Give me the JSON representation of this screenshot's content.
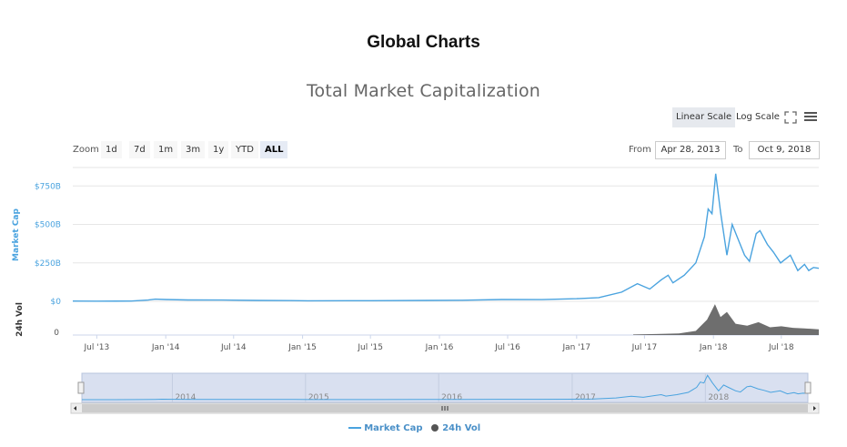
{
  "page": {
    "title": "Global Charts"
  },
  "controls": {
    "linear_scale": "Linear Scale",
    "log_scale": "Log Scale",
    "zoom_label": "Zoom",
    "zoom_buttons": [
      "1d",
      "7d",
      "1m",
      "3m",
      "1y",
      "YTD",
      "ALL"
    ],
    "active_zoom": "ALL",
    "from_label": "From",
    "from_value": "Apr 28, 2013",
    "to_label": "To",
    "to_value": "Oct 9, 2018"
  },
  "colors": {
    "market_cap": "#4aa3df",
    "volume": "#555555",
    "navigator_fill": "#d9e0f0"
  },
  "chart_data": {
    "type": "line",
    "title": "Total Market Capitalization",
    "yaxis_market_cap": {
      "label": "Market Cap",
      "ticks": [
        "$0",
        "$250B",
        "$500B",
        "$750B"
      ],
      "tick_values": [
        0,
        250,
        500,
        750
      ],
      "unit": "B USD"
    },
    "yaxis_volume": {
      "label": "24h Vol",
      "ticks": [
        "0"
      ]
    },
    "x_ticks": [
      "Jul '13",
      "Jan '14",
      "Jul '14",
      "Jan '15",
      "Jul '15",
      "Jan '16",
      "Jul '16",
      "Jan '17",
      "Jul '17",
      "Jan '18",
      "Jul '18"
    ],
    "navigator_ticks": [
      "2014",
      "2015",
      "2016",
      "2017",
      "2018"
    ],
    "series": [
      {
        "name": "Market Cap",
        "unit": "B USD",
        "points": [
          [
            "2013-04-28",
            1.5
          ],
          [
            "2013-07-01",
            1.2
          ],
          [
            "2013-10-01",
            2
          ],
          [
            "2013-11-15",
            8
          ],
          [
            "2013-12-04",
            14
          ],
          [
            "2014-01-01",
            12
          ],
          [
            "2014-03-01",
            9
          ],
          [
            "2014-06-01",
            8
          ],
          [
            "2014-09-01",
            6
          ],
          [
            "2014-12-01",
            5
          ],
          [
            "2015-01-15",
            3.5
          ],
          [
            "2015-07-01",
            4
          ],
          [
            "2015-12-01",
            6
          ],
          [
            "2016-03-01",
            7
          ],
          [
            "2016-06-15",
            12
          ],
          [
            "2016-10-01",
            11
          ],
          [
            "2017-01-01",
            17
          ],
          [
            "2017-03-01",
            24
          ],
          [
            "2017-05-01",
            60
          ],
          [
            "2017-06-12",
            115
          ],
          [
            "2017-07-15",
            80
          ],
          [
            "2017-08-15",
            140
          ],
          [
            "2017-09-02",
            170
          ],
          [
            "2017-09-15",
            120
          ],
          [
            "2017-10-15",
            170
          ],
          [
            "2017-11-15",
            250
          ],
          [
            "2017-12-08",
            420
          ],
          [
            "2017-12-18",
            600
          ],
          [
            "2017-12-28",
            570
          ],
          [
            "2018-01-07",
            830
          ],
          [
            "2018-01-20",
            580
          ],
          [
            "2018-02-06",
            300
          ],
          [
            "2018-02-20",
            500
          ],
          [
            "2018-03-05",
            420
          ],
          [
            "2018-03-25",
            300
          ],
          [
            "2018-04-07",
            260
          ],
          [
            "2018-04-25",
            440
          ],
          [
            "2018-05-05",
            460
          ],
          [
            "2018-05-25",
            370
          ],
          [
            "2018-06-10",
            320
          ],
          [
            "2018-06-29",
            250
          ],
          [
            "2018-07-25",
            300
          ],
          [
            "2018-08-14",
            200
          ],
          [
            "2018-09-01",
            240
          ],
          [
            "2018-09-12",
            200
          ],
          [
            "2018-09-25",
            220
          ],
          [
            "2018-10-09",
            215
          ]
        ]
      },
      {
        "name": "24h Vol",
        "unit": "B USD",
        "points": [
          [
            "2017-06-01",
            1
          ],
          [
            "2017-08-01",
            2
          ],
          [
            "2017-10-01",
            3
          ],
          [
            "2017-11-15",
            8
          ],
          [
            "2017-12-15",
            30
          ],
          [
            "2018-01-05",
            60
          ],
          [
            "2018-01-20",
            35
          ],
          [
            "2018-02-06",
            45
          ],
          [
            "2018-03-01",
            22
          ],
          [
            "2018-04-01",
            18
          ],
          [
            "2018-05-01",
            25
          ],
          [
            "2018-06-01",
            15
          ],
          [
            "2018-07-01",
            17
          ],
          [
            "2018-08-01",
            14
          ],
          [
            "2018-09-01",
            13
          ],
          [
            "2018-10-09",
            11
          ]
        ]
      }
    ],
    "x_range": [
      "2013-04-28",
      "2018-10-09"
    ],
    "ylim": [
      0,
      870
    ],
    "legend": {
      "placement": "bottom-center"
    }
  }
}
